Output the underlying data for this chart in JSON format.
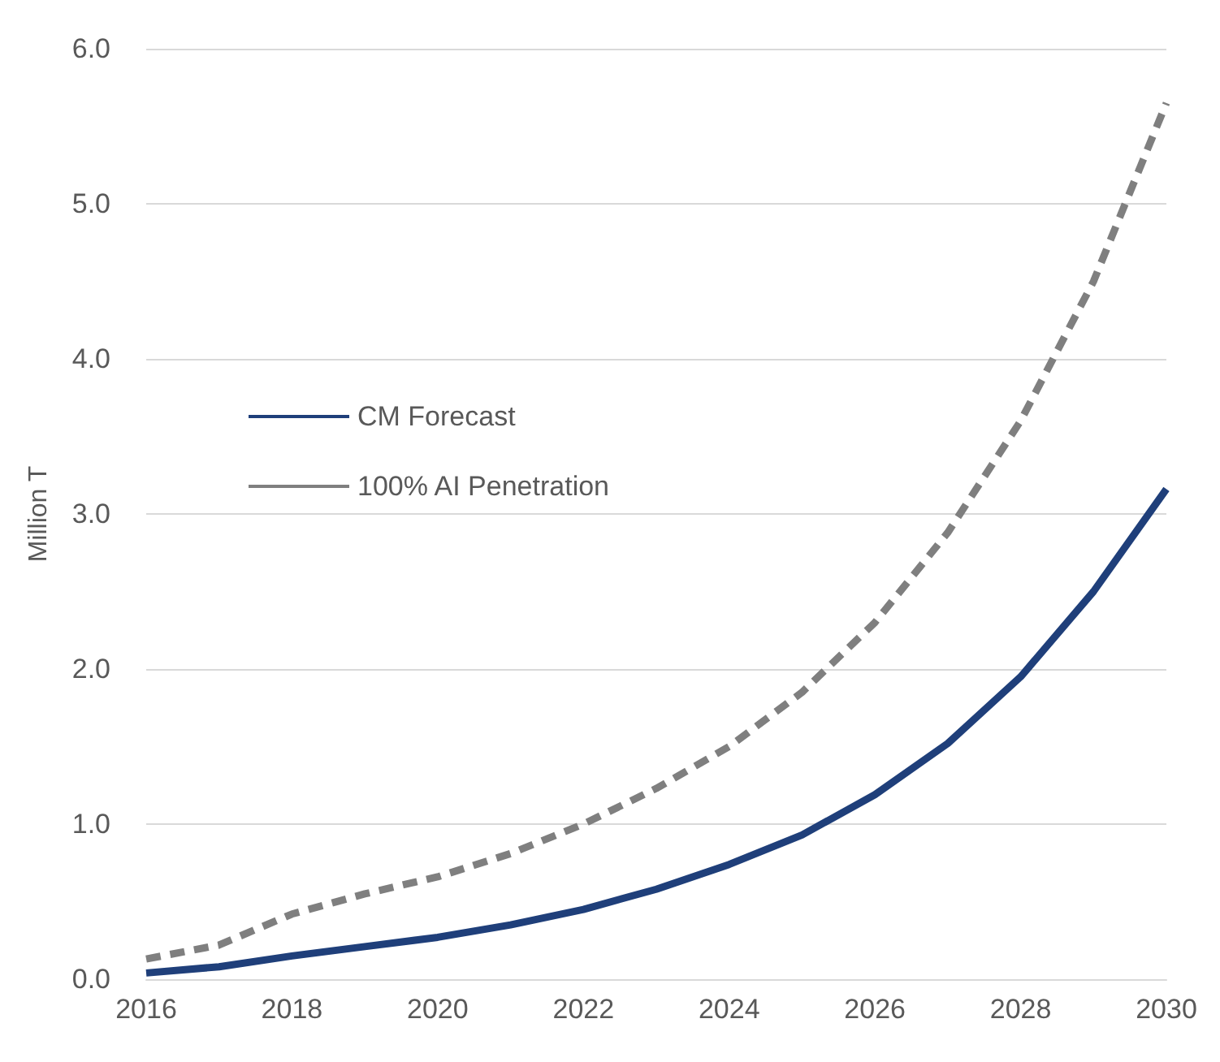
{
  "chart_data": {
    "type": "line",
    "ylabel": "Million T",
    "x": [
      2016,
      2017,
      2018,
      2019,
      2020,
      2021,
      2022,
      2023,
      2024,
      2025,
      2026,
      2027,
      2028,
      2029,
      2030
    ],
    "series": [
      {
        "name": "CM Forecast",
        "color": "#1f3f7a",
        "line_style": "solid",
        "values": [
          0.04,
          0.08,
          0.15,
          0.21,
          0.27,
          0.35,
          0.45,
          0.58,
          0.74,
          0.93,
          1.19,
          1.52,
          1.95,
          2.5,
          3.16
        ]
      },
      {
        "name": "100% AI Penetration",
        "color": "#7f7f7f",
        "line_style": "dashed",
        "values": [
          0.13,
          0.22,
          0.42,
          0.55,
          0.66,
          0.81,
          1.0,
          1.23,
          1.5,
          1.85,
          2.3,
          2.88,
          3.6,
          4.5,
          5.65
        ]
      }
    ],
    "xlim": [
      2016,
      2030
    ],
    "xticks": [
      2016,
      2018,
      2020,
      2022,
      2024,
      2026,
      2028,
      2030
    ],
    "ylim": [
      0,
      6
    ],
    "yticks": [
      {
        "value": 0,
        "label": "0.0"
      },
      {
        "value": 1,
        "label": "1.0"
      },
      {
        "value": 2,
        "label": "2.0"
      },
      {
        "value": 3,
        "label": "3.0"
      },
      {
        "value": 4,
        "label": "4.0"
      },
      {
        "value": 5,
        "label": "5.0"
      },
      {
        "value": 6,
        "label": "6.0"
      }
    ],
    "grid": "y",
    "legend": "left",
    "marker": "none"
  }
}
